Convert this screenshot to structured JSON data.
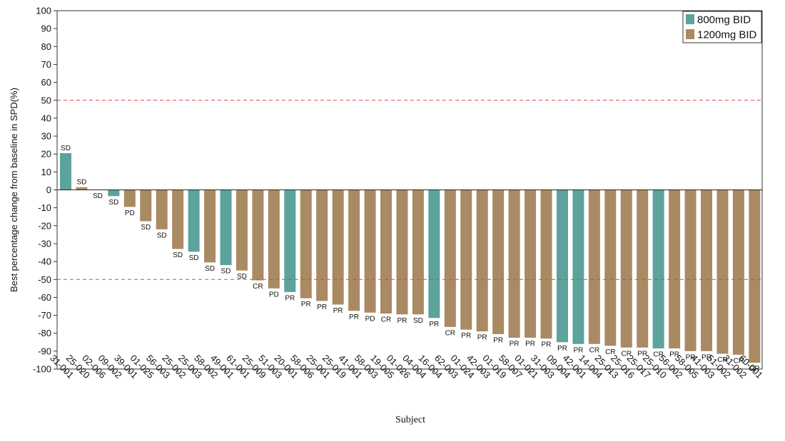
{
  "chart_data": {
    "type": "bar",
    "title": "",
    "xlabel": "Subject",
    "ylabel": "Best percentage change from baseline in SPD(%)",
    "ylim": [
      -100,
      100
    ],
    "yticks": [
      100,
      90,
      80,
      70,
      60,
      50,
      40,
      30,
      20,
      10,
      0,
      -10,
      -20,
      -30,
      -40,
      -50,
      -60,
      -70,
      -80,
      -90,
      -100
    ],
    "reference_lines": [
      50,
      -50
    ],
    "legend_position": "top-right",
    "series": [
      {
        "name": "800mg BID",
        "color": "#5ba39b"
      },
      {
        "name": "1200mg BID",
        "color": "#a98a62"
      }
    ],
    "categories": [
      "31-001",
      "25-020",
      "02-006",
      "09-002",
      "39-001",
      "01-025",
      "56-003",
      "25-002",
      "25-003",
      "58-002",
      "49-001",
      "61-001",
      "25-009",
      "51-003",
      "20-001",
      "58-006",
      "25-001",
      "25-019",
      "41-001",
      "58-003",
      "19-005",
      "01-026",
      "04-004",
      "16-004",
      "62-003",
      "01-024",
      "42-003",
      "01-019",
      "58-007",
      "01-021",
      "31-003",
      "09-004",
      "42-001",
      "14-004",
      "25-013",
      "25-016",
      "25-017",
      "25-010",
      "56-002",
      "58-005",
      "41-003",
      "51-002",
      "31-002",
      "60-001"
    ],
    "values": [
      20.5,
      1.5,
      0,
      -3.5,
      -9.5,
      -17.5,
      -22,
      -33,
      -34.5,
      -40.5,
      -42,
      -45,
      -50.5,
      -55,
      -57,
      -60.5,
      -62,
      -64,
      -67.5,
      -68.5,
      -69,
      -69.5,
      -69.5,
      -71.5,
      -76.5,
      -78,
      -79,
      -80.5,
      -82.5,
      -82.5,
      -83,
      -85,
      -86,
      -86,
      -87,
      -88,
      -88,
      -88.5,
      -88.5,
      -90,
      -90,
      -91.5,
      -92,
      -96.5
    ],
    "dose": [
      "800mg BID",
      "1200mg BID",
      "1200mg BID",
      "800mg BID",
      "1200mg BID",
      "1200mg BID",
      "1200mg BID",
      "1200mg BID",
      "800mg BID",
      "1200mg BID",
      "800mg BID",
      "1200mg BID",
      "1200mg BID",
      "1200mg BID",
      "800mg BID",
      "1200mg BID",
      "1200mg BID",
      "1200mg BID",
      "1200mg BID",
      "1200mg BID",
      "1200mg BID",
      "1200mg BID",
      "1200mg BID",
      "800mg BID",
      "1200mg BID",
      "1200mg BID",
      "1200mg BID",
      "1200mg BID",
      "1200mg BID",
      "1200mg BID",
      "1200mg BID",
      "800mg BID",
      "800mg BID",
      "1200mg BID",
      "1200mg BID",
      "1200mg BID",
      "1200mg BID",
      "800mg BID",
      "1200mg BID",
      "1200mg BID",
      "1200mg BID",
      "1200mg BID",
      "1200mg BID",
      "1200mg BID"
    ],
    "response": [
      "SD",
      "SD",
      "SD",
      "SD",
      "PD",
      "SD",
      "SD",
      "SD",
      "SD",
      "SD",
      "SD",
      "SD",
      "CR",
      "PD",
      "PR",
      "PR",
      "PR",
      "PR",
      "PR",
      "PD",
      "CR",
      "PR",
      "SD",
      "PR",
      "CR",
      "PR",
      "PR",
      "PR",
      "PR",
      "PR",
      "PR",
      "PR",
      "PR",
      "CR",
      "CR",
      "CR",
      "PR",
      "CR",
      "PR",
      "PR",
      "PR",
      "CR",
      "CR",
      "CR"
    ]
  }
}
